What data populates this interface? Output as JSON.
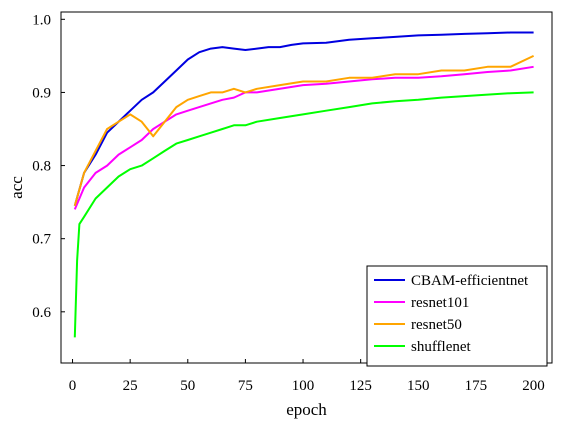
{
  "chart_data": {
    "type": "line",
    "title": "",
    "xlabel": "epoch",
    "ylabel": "acc",
    "xlim": [
      -5,
      208
    ],
    "ylim": [
      0.53,
      1.01
    ],
    "xticks": [
      0,
      25,
      50,
      75,
      100,
      125,
      150,
      175,
      200
    ],
    "yticks": [
      0.6,
      0.7,
      0.8,
      0.9,
      1.0
    ],
    "ytick_labels": [
      "0.6",
      "0.7",
      "0.8",
      "0.9",
      "1.0"
    ],
    "grid": false,
    "legend_position": "lower-right",
    "series": [
      {
        "name": "CBAM-efficientnet",
        "color": "#0000e0",
        "x": [
          1,
          5,
          10,
          15,
          20,
          25,
          30,
          35,
          40,
          45,
          50,
          55,
          60,
          65,
          70,
          75,
          80,
          85,
          90,
          95,
          100,
          110,
          120,
          130,
          140,
          150,
          160,
          170,
          180,
          190,
          200
        ],
        "y": [
          0.745,
          0.79,
          0.815,
          0.845,
          0.86,
          0.875,
          0.89,
          0.9,
          0.915,
          0.93,
          0.945,
          0.955,
          0.96,
          0.962,
          0.96,
          0.958,
          0.96,
          0.962,
          0.962,
          0.965,
          0.967,
          0.968,
          0.972,
          0.974,
          0.976,
          0.978,
          0.979,
          0.98,
          0.981,
          0.982,
          0.982
        ]
      },
      {
        "name": "resnet101",
        "color": "#ff00ff",
        "x": [
          1,
          5,
          10,
          15,
          20,
          25,
          30,
          35,
          40,
          45,
          50,
          55,
          60,
          65,
          70,
          75,
          80,
          90,
          100,
          110,
          120,
          130,
          140,
          150,
          160,
          170,
          180,
          190,
          200
        ],
        "y": [
          0.74,
          0.77,
          0.79,
          0.8,
          0.815,
          0.825,
          0.835,
          0.85,
          0.86,
          0.87,
          0.875,
          0.88,
          0.885,
          0.89,
          0.893,
          0.9,
          0.9,
          0.905,
          0.91,
          0.912,
          0.915,
          0.918,
          0.92,
          0.92,
          0.922,
          0.925,
          0.928,
          0.93,
          0.935
        ]
      },
      {
        "name": "resnet50",
        "color": "#ffa500",
        "x": [
          1,
          5,
          10,
          15,
          20,
          25,
          30,
          35,
          40,
          45,
          50,
          55,
          60,
          65,
          70,
          75,
          80,
          90,
          100,
          110,
          120,
          130,
          140,
          150,
          160,
          170,
          180,
          190,
          200
        ],
        "y": [
          0.745,
          0.79,
          0.82,
          0.85,
          0.86,
          0.87,
          0.86,
          0.84,
          0.86,
          0.88,
          0.89,
          0.895,
          0.9,
          0.9,
          0.905,
          0.9,
          0.905,
          0.91,
          0.915,
          0.915,
          0.92,
          0.92,
          0.925,
          0.925,
          0.93,
          0.93,
          0.935,
          0.935,
          0.95
        ]
      },
      {
        "name": "shufflenet",
        "color": "#00ff00",
        "x": [
          1,
          2,
          3,
          5,
          10,
          15,
          20,
          25,
          30,
          35,
          40,
          45,
          50,
          55,
          60,
          65,
          70,
          75,
          80,
          90,
          100,
          110,
          120,
          130,
          140,
          150,
          160,
          170,
          180,
          190,
          200
        ],
        "y": [
          0.565,
          0.67,
          0.72,
          0.73,
          0.755,
          0.77,
          0.785,
          0.795,
          0.8,
          0.81,
          0.82,
          0.83,
          0.835,
          0.84,
          0.845,
          0.85,
          0.855,
          0.855,
          0.86,
          0.865,
          0.87,
          0.875,
          0.88,
          0.885,
          0.888,
          0.89,
          0.893,
          0.895,
          0.897,
          0.899,
          0.9
        ]
      }
    ]
  }
}
